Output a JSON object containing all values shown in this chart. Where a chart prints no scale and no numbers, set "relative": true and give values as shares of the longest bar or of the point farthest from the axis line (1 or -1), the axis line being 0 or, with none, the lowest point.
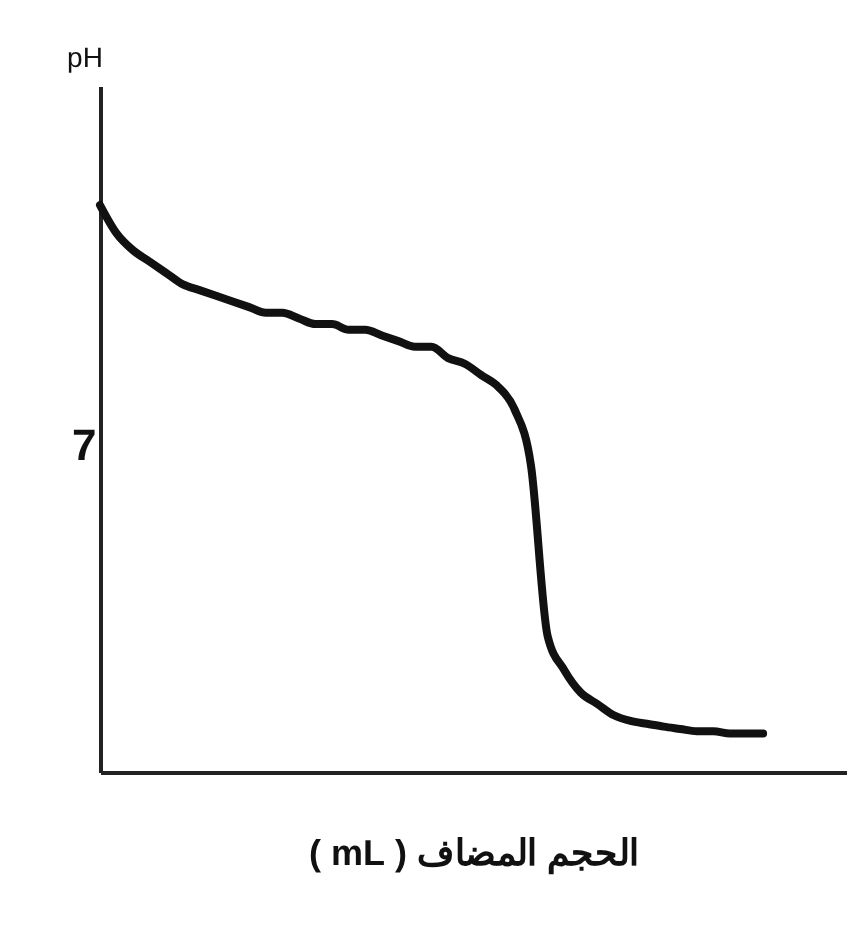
{
  "chart_data": {
    "type": "line",
    "ylabel": "pH",
    "xlabel": "الحجم المضاف ( mL )",
    "relative": true,
    "categories": [
      null,
      null,
      null,
      null,
      null,
      null,
      null,
      null,
      null,
      null,
      null,
      null,
      null,
      null,
      null,
      null,
      null,
      null,
      null,
      null,
      null,
      null,
      null,
      null,
      null,
      null,
      null,
      null,
      null,
      null,
      null,
      null,
      null,
      null,
      null,
      null,
      null,
      null,
      null,
      null,
      null,
      null,
      null,
      null,
      null,
      null
    ],
    "series": [
      {
        "color": "#111111",
        "values": [
          1,
          0.95,
          0.92,
          0.9,
          0.88,
          0.86,
          0.85,
          0.84,
          0.83,
          0.82,
          0.81,
          0.81,
          0.8,
          0.79,
          0.79,
          0.78,
          0.78,
          0.77,
          0.76,
          0.75,
          0.75,
          0.73,
          0.72,
          0.7,
          0.68,
          0.64,
          0.54,
          0.24,
          0.18,
          0.14,
          0.12,
          0.1,
          0.09,
          0.085,
          0.08,
          0.076,
          0.072,
          0.072,
          0.068,
          0.068,
          0.068,
          null,
          null,
          null,
          null,
          null
        ]
      }
    ],
    "annotations": [
      "7"
    ]
  }
}
